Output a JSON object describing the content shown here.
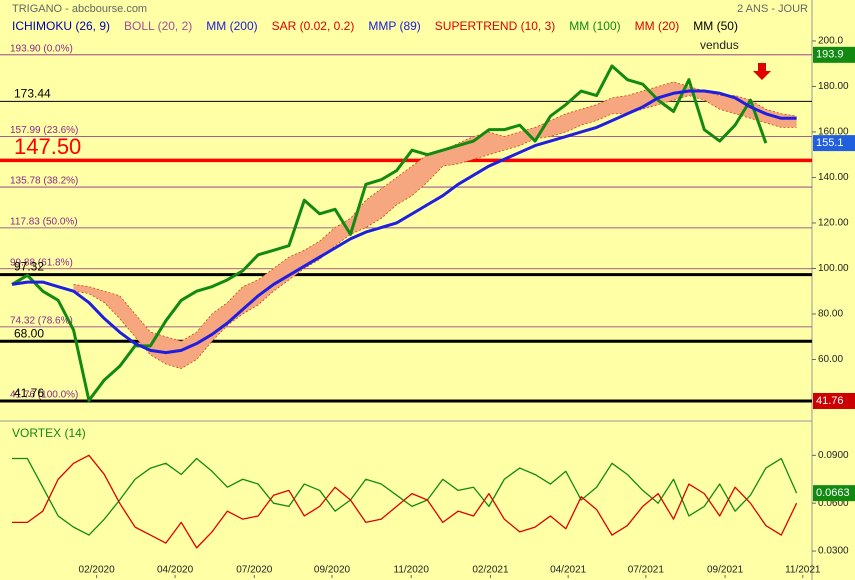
{
  "header": {
    "title": "TRIGANO - abcbourse.com",
    "period": "2 ANS - JOUR"
  },
  "legend": [
    {
      "name": "ICHIMOKU (26, 9)",
      "color": "#0000b0"
    },
    {
      "name": "BOLL (20, 2)",
      "color": "#a0509a"
    },
    {
      "name": "MM (200)",
      "color": "#1a1ae0"
    },
    {
      "name": "SAR (0.02, 0.2)",
      "color": "#e00000"
    },
    {
      "name": "MMP (89)",
      "color": "#1a1ae0"
    },
    {
      "name": "SUPERTREND (10, 3)",
      "color": "#e00000"
    },
    {
      "name": "MM (100)",
      "color": "#108a10"
    },
    {
      "name": "MM (20)",
      "color": "#e00000"
    },
    {
      "name": "MM (50)",
      "color": "#000000"
    }
  ],
  "annotations": [
    {
      "text": "vendus"
    }
  ],
  "chart_data": [
    {
      "type": "line",
      "xlim": [
        -1.56,
        104
      ],
      "ylim": [
        33.4,
        218
      ],
      "yticks": [
        {
          "value": 200,
          "label": "200.0"
        },
        {
          "value": 180,
          "label": "180.00"
        },
        {
          "value": 160,
          "label": "160.00"
        },
        {
          "value": 140,
          "label": "140.00"
        },
        {
          "value": 120,
          "label": "120.00"
        },
        {
          "value": 100,
          "label": "100.00"
        },
        {
          "value": 80,
          "label": "80.00"
        },
        {
          "value": 60,
          "label": "60.00"
        }
      ],
      "x": [
        0,
        2,
        4,
        6,
        8,
        10,
        12,
        14,
        16,
        18,
        20,
        22,
        24,
        26,
        28,
        30,
        32,
        34,
        36,
        38,
        40,
        42,
        44,
        46,
        48,
        50,
        52,
        54,
        56,
        58,
        60,
        62,
        64,
        66,
        68,
        70,
        72,
        74,
        76,
        78,
        80,
        82,
        84,
        86,
        88,
        90,
        92,
        94,
        96,
        98,
        100,
        102
      ],
      "cloud": {
        "color": "#c84a10",
        "fill": "#f6a77f",
        "upper": [
          null,
          null,
          null,
          null,
          93,
          92,
          90,
          88,
          80,
          72,
          70,
          68,
          72,
          80,
          85,
          92,
          95,
          100,
          105,
          108,
          112,
          118,
          122,
          130,
          135,
          140,
          145,
          150,
          152,
          155,
          158,
          160,
          158,
          160,
          162,
          165,
          168,
          170,
          172,
          175,
          176,
          178,
          180,
          182,
          180,
          178,
          176,
          176,
          174,
          170,
          168,
          167
        ],
        "lower": [
          null,
          null,
          null,
          null,
          90,
          89,
          85,
          78,
          70,
          62,
          58,
          56,
          60,
          68,
          75,
          80,
          84,
          90,
          95,
          100,
          104,
          110,
          115,
          118,
          122,
          128,
          132,
          138,
          145,
          146,
          148,
          150,
          152,
          154,
          157,
          158,
          160,
          163,
          165,
          168,
          168,
          170,
          172,
          174,
          176,
          174,
          170,
          168,
          166,
          164,
          162,
          162
        ]
      },
      "series": [
        {
          "color": "#128a12",
          "values": [
            93,
            97,
            90,
            86,
            73,
            42,
            51,
            57,
            66,
            66,
            77,
            86,
            90,
            92,
            95,
            99,
            106,
            108,
            110,
            130,
            124,
            126,
            115,
            137,
            139,
            143,
            152,
            150,
            152,
            154,
            156,
            161,
            161,
            163,
            156,
            167,
            172,
            178,
            176,
            189,
            183,
            181,
            174,
            169,
            183,
            161,
            156,
            163,
            174,
            155.1,
            null,
            null
          ]
        },
        {
          "color": "#1f1fe0",
          "values": [
            93,
            94,
            94,
            92,
            90,
            85,
            78,
            72,
            67,
            64,
            63,
            64,
            67,
            71,
            76,
            82,
            88,
            93,
            97,
            101,
            105,
            109,
            113,
            116,
            118,
            120,
            124,
            128,
            132,
            137,
            141,
            145,
            148,
            151,
            154,
            156,
            158,
            160,
            162,
            165,
            168,
            171,
            175,
            177,
            178,
            178,
            177,
            175,
            171,
            168,
            166,
            166
          ]
        }
      ],
      "levels": [
        {
          "value": 193.9,
          "label": "193.90  (0.0%)",
          "color": "#8a2a8a",
          "style": "fib"
        },
        {
          "value": 173.44,
          "label": "173.44",
          "color": "#000000",
          "style": "thin"
        },
        {
          "value": 157.99,
          "label": "157.99  (23.6%)",
          "color": "#8a2a8a",
          "style": "fib"
        },
        {
          "value": 147.5,
          "label": "147.50",
          "color": "#ff0000",
          "style": "bold"
        },
        {
          "value": 135.78,
          "label": "135.78  (38.2%)",
          "color": "#8a2a8a",
          "style": "fib"
        },
        {
          "value": 117.83,
          "label": "117.83  (50.0%)",
          "color": "#8a2a8a",
          "style": "fib"
        },
        {
          "value": 99.88,
          "label": "99.88  (61.8%)",
          "color": "#8a2a8a",
          "style": "fib"
        },
        {
          "value": 97.32,
          "label": "97.32",
          "color": "#000000",
          "style": "thick"
        },
        {
          "value": 74.32,
          "label": "74.32  (78.6%)",
          "color": "#8a2a8a",
          "style": "fib"
        },
        {
          "value": 68,
          "label": "68.00",
          "color": "#000000",
          "style": "thick"
        },
        {
          "value": 41.76,
          "label": "41.76  (100.0%)",
          "color": "#8a2a8a",
          "style": "fib"
        },
        {
          "value": 41.76,
          "label": "41.76",
          "color": "#000000",
          "style": "thick"
        }
      ],
      "tags": [
        {
          "value": 193.9,
          "color": "#128a12"
        },
        {
          "value": 155.1,
          "color": "#1f5fe0"
        },
        {
          "value": 41.76,
          "color": "#cc0000"
        }
      ]
    },
    {
      "type": "line",
      "title": "VORTEX (14)",
      "xlim": [
        -1.56,
        104
      ],
      "ylim": [
        0.015,
        0.109
      ],
      "yticks": [
        {
          "value": 0.09,
          "label": "0.0900"
        },
        {
          "value": 0.06,
          "label": "0.0600"
        },
        {
          "value": 0.03,
          "label": "0.0300"
        }
      ],
      "xticks": [
        {
          "value": 11,
          "label": "02/2020"
        },
        {
          "value": 21.2,
          "label": "04/2020"
        },
        {
          "value": 31.5,
          "label": "07/2020"
        },
        {
          "value": 41.6,
          "label": "09/2020"
        },
        {
          "value": 51.9,
          "label": "11/2020"
        },
        {
          "value": 62.2,
          "label": "02/2021"
        },
        {
          "value": 72.3,
          "label": "04/2021"
        },
        {
          "value": 82.4,
          "label": "07/2021"
        },
        {
          "value": 92.7,
          "label": "09/2021"
        },
        {
          "value": 102.8,
          "label": "11/2021"
        }
      ],
      "x": [
        0,
        2,
        4,
        6,
        8,
        10,
        12,
        14,
        16,
        18,
        20,
        22,
        24,
        26,
        28,
        30,
        32,
        34,
        36,
        38,
        40,
        42,
        44,
        46,
        48,
        50,
        52,
        54,
        56,
        58,
        60,
        62,
        64,
        66,
        68,
        70,
        72,
        74,
        76,
        78,
        80,
        82,
        84,
        86,
        88,
        90,
        92,
        94,
        96,
        98,
        100,
        102
      ],
      "series": [
        {
          "color": "#128a12",
          "values": [
            0.088,
            0.088,
            0.07,
            0.052,
            0.045,
            0.04,
            0.05,
            0.062,
            0.075,
            0.082,
            0.085,
            0.078,
            0.088,
            0.08,
            0.07,
            0.075,
            0.072,
            0.06,
            0.058,
            0.072,
            0.068,
            0.055,
            0.062,
            0.075,
            0.072,
            0.065,
            0.058,
            0.062,
            0.075,
            0.068,
            0.07,
            0.058,
            0.075,
            0.082,
            0.078,
            0.072,
            0.08,
            0.062,
            0.07,
            0.085,
            0.078,
            0.068,
            0.06,
            0.075,
            0.052,
            0.058,
            0.072,
            0.055,
            0.065,
            0.082,
            0.088,
            0.0663
          ]
        },
        {
          "color": "#e00000",
          "values": [
            0.048,
            0.048,
            0.055,
            0.075,
            0.085,
            0.09,
            0.078,
            0.06,
            0.045,
            0.04,
            0.035,
            0.048,
            0.032,
            0.042,
            0.055,
            0.05,
            0.052,
            0.065,
            0.068,
            0.052,
            0.058,
            0.07,
            0.062,
            0.048,
            0.05,
            0.058,
            0.066,
            0.062,
            0.048,
            0.055,
            0.052,
            0.066,
            0.05,
            0.042,
            0.045,
            0.052,
            0.044,
            0.064,
            0.056,
            0.04,
            0.046,
            0.058,
            0.066,
            0.05,
            0.072,
            0.066,
            0.052,
            0.07,
            0.06,
            0.046,
            0.04,
            0.06
          ]
        }
      ],
      "tags": [
        {
          "value": 0.0663,
          "color": "#128a12"
        }
      ]
    }
  ]
}
